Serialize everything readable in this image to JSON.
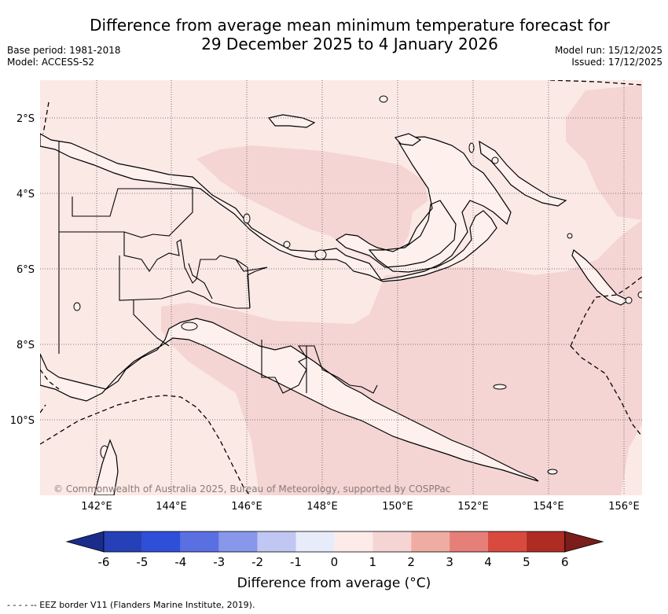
{
  "title": {
    "line1": "Difference from average mean minimum temperature forecast for",
    "line2": "29 December 2025 to 4 January 2026"
  },
  "meta_left": {
    "base_period": "Base period: 1981-2018",
    "model": "Model: ACCESS-S2"
  },
  "meta_right": {
    "model_run": "Model run: 15/12/2025",
    "issued": "Issued: 17/12/2025"
  },
  "map": {
    "lat_labels": [
      "2°S",
      "4°S",
      "6°S",
      "8°S",
      "10°S"
    ],
    "lon_labels": [
      "142°E",
      "144°E",
      "146°E",
      "148°E",
      "150°E",
      "152°E",
      "154°E",
      "156°E"
    ],
    "copyright": "© Commonwealth of Australia 2025, Bureau of Meteorology, supported by COSPPac",
    "fill_colors": {
      "background": "#fbe9e6",
      "anomaly_1_2": "#f4d5d4",
      "land_0_1": "#fdf0ed"
    }
  },
  "colorbar": {
    "ticks": [
      "-6",
      "-5",
      "-4",
      "-3",
      "-2",
      "-1",
      "0",
      "1",
      "2",
      "3",
      "4",
      "5",
      "6"
    ],
    "colors": [
      "#1a2d8a",
      "#2641b8",
      "#2f4fd9",
      "#5a70e2",
      "#8797ea",
      "#bfc7f2",
      "#e8ebfa",
      "#fcebe8",
      "#f4d5d4",
      "#efaca3",
      "#e57f77",
      "#d94a3e",
      "#ae2c24",
      "#7b1d1a"
    ],
    "label": "Difference from average (°C)"
  },
  "footer": "- -  - -  -- EEZ border V11 (Flanders Marine Institute, 2019)."
}
